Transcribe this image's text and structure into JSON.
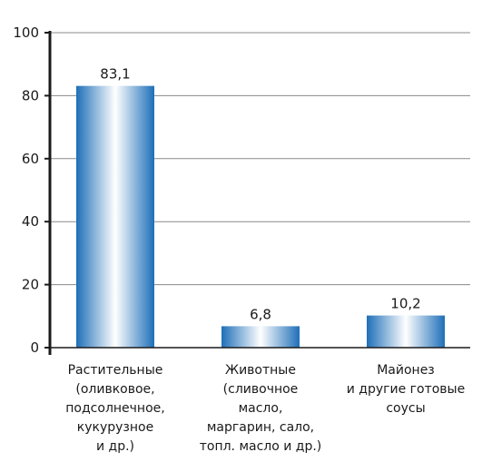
{
  "chart_data": {
    "type": "bar",
    "title": "",
    "xlabel": "",
    "ylabel": "",
    "ylim": [
      0,
      100
    ],
    "yticks": [
      0,
      20,
      40,
      60,
      80,
      100
    ],
    "grid": true,
    "categories": [
      [
        "Растительные",
        "(оливковое,",
        "подсолнечное,",
        "кукурузное",
        "и др.)"
      ],
      [
        "Животные",
        "(сливочное",
        "масло,",
        "маргарин, сало,",
        "топл. масло и др.)"
      ],
      [
        "Майонез",
        "и другие готовые",
        "соусы"
      ]
    ],
    "values": [
      83.1,
      6.8,
      10.2
    ],
    "value_labels": [
      "83,1",
      "6,8",
      "10,2"
    ],
    "colors": {
      "bar_edge": "#1e6fb8",
      "bar_center": "#ffffff",
      "grid": "#8a8a8a",
      "axis": "#1a1a1a"
    }
  }
}
